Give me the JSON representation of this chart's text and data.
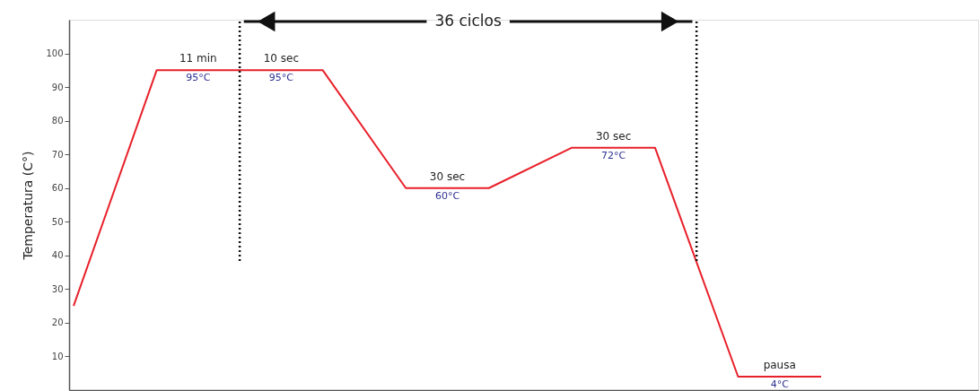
{
  "chart_data": {
    "type": "line",
    "categories": [
      null,
      null,
      null,
      null,
      null,
      null,
      null,
      null,
      null,
      null
    ],
    "series": [
      {
        "color": "#e8202a",
        "values": [
          25,
          95,
          95,
          95,
          60,
          60,
          72,
          72,
          4,
          4
        ]
      }
    ],
    "ylabel": "Temperatura (C°)",
    "ylim": [
      0,
      110
    ],
    "yticks": [
      10,
      20,
      30,
      40,
      50,
      60,
      70,
      80,
      90,
      100
    ],
    "grid": false,
    "tick_labels": "y",
    "marker": "none",
    "line_style": "solid",
    "annotations": [
      {
        "text": "11 min",
        "y": 95
      },
      {
        "text": "95°C",
        "y": 95
      },
      {
        "text": "10 sec",
        "y": 95
      },
      {
        "text": "95°C",
        "y": 95
      },
      {
        "text": "30 sec",
        "y": 60
      },
      {
        "text": "60°C",
        "y": 60
      },
      {
        "text": "30 sec",
        "y": 72
      },
      {
        "text": "72°C",
        "y": 72
      },
      {
        "text": "pausa",
        "y": 4
      },
      {
        "text": "4°C",
        "y": 4
      },
      "36 ciclos"
    ]
  }
}
